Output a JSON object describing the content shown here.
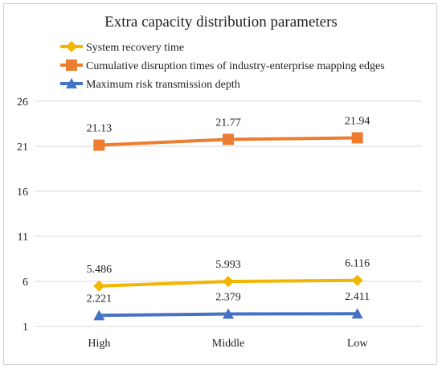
{
  "chart_data": {
    "type": "line",
    "title": "Extra capacity distribution parameters",
    "categories": [
      "High",
      "Middle",
      "Low"
    ],
    "series": [
      {
        "name": "System recovery time",
        "values": [
          5.486,
          5.993,
          6.116
        ],
        "labels": [
          "5.486",
          "5.993",
          "6.116"
        ],
        "color": "#F2B600",
        "marker": "diamond"
      },
      {
        "name": "Cumulative disruption times of industry-enterprise mapping edges",
        "values": [
          21.13,
          21.77,
          21.94
        ],
        "labels": [
          "21.13",
          "21.77",
          "21.94"
        ],
        "color": "#ED7D31",
        "marker": "square"
      },
      {
        "name": "Maximum risk transmission depth",
        "values": [
          2.221,
          2.379,
          2.411
        ],
        "labels": [
          "2.221",
          "2.379",
          "2.411"
        ],
        "color": "#4472C4",
        "marker": "triangle"
      }
    ],
    "yticks": [
      1,
      6,
      11,
      16,
      21,
      26
    ],
    "ylim": [
      1,
      26
    ],
    "grid": true,
    "legend_position": "top-left"
  }
}
